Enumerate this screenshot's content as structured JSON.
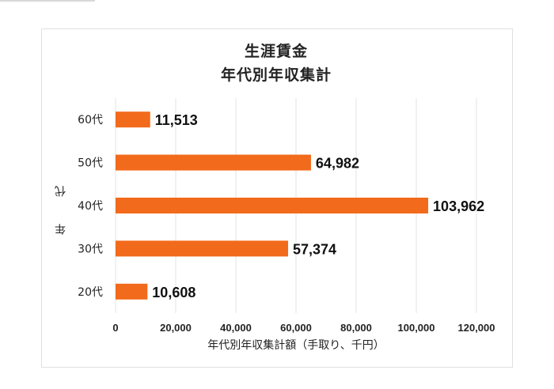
{
  "chart_data": {
    "type": "bar",
    "orientation": "horizontal",
    "title": "生涯賃金",
    "subtitle": "年代別年収集計",
    "xlabel": "年代別年収集計額（手取り、千円）",
    "ylabel": "年　代",
    "categories": [
      "60代",
      "50代",
      "40代",
      "30代",
      "20代"
    ],
    "values": [
      11513,
      64982,
      103962,
      57374,
      10608
    ],
    "data_labels": [
      "11,513",
      "64,982",
      "103,962",
      "57,374",
      "10,608"
    ],
    "xlim": [
      0,
      120000
    ],
    "x_ticks": [
      0,
      20000,
      40000,
      60000,
      80000,
      100000,
      120000
    ],
    "x_tick_labels": [
      "0",
      "20,000",
      "40,000",
      "60,000",
      "80,000",
      "100,000",
      "120,000"
    ],
    "grid": "vertical",
    "legend": "none",
    "bar_color": "#f26a1b",
    "grid_color": "#e3e3e3"
  }
}
